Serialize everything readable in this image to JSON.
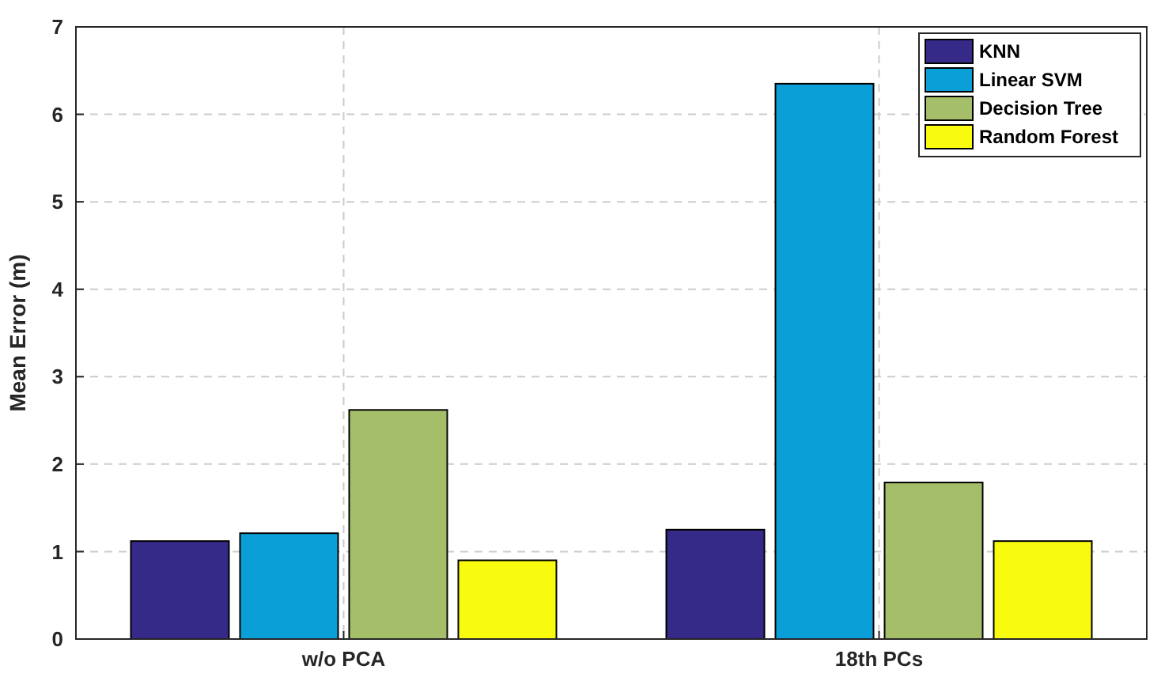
{
  "chart_data": {
    "type": "bar",
    "ylabel": "Mean Error (m)",
    "categories": [
      "w/o PCA",
      "18th PCs"
    ],
    "series": [
      {
        "name": "KNN",
        "color": "#352a87",
        "values": [
          1.12,
          1.25
        ]
      },
      {
        "name": "Linear SVM",
        "color": "#0a9fd6",
        "values": [
          1.21,
          6.35
        ]
      },
      {
        "name": "Decision Tree",
        "color": "#a5be6a",
        "values": [
          2.62,
          1.79
        ]
      },
      {
        "name": "Random Forest",
        "color": "#f9fb0e",
        "values": [
          0.9,
          1.12
        ]
      }
    ],
    "ylim": [
      0,
      7
    ],
    "yticks": [
      0,
      1,
      2,
      3,
      4,
      5,
      6,
      7
    ],
    "grid": true,
    "legend": "top right"
  }
}
